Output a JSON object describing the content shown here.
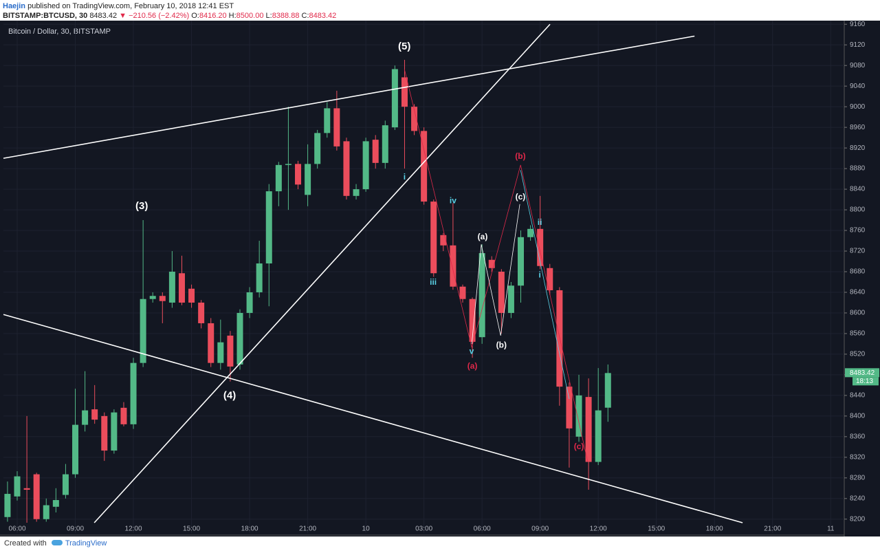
{
  "header": {
    "author": "Haejin",
    "published": "published on TradingView.com, February 10, 2018 12:41 EST",
    "symbol": "BITSTAMP:BTCUSD, 30",
    "last": "8483.42",
    "change": "▼ −210.56 (−2.42%)",
    "o_label": "O:",
    "o": "8416.20",
    "h_label": "H:",
    "h": "8500.00",
    "l_label": "L:",
    "l": "8388.88",
    "c_label": "C:",
    "c": "8483.42"
  },
  "footer": {
    "created": "Created with",
    "brand": "TradingView"
  },
  "chart_data": {
    "type": "candlestick",
    "title": "Bitcoin / Dollar, 30, BITSTAMP",
    "up_color": "#53b987",
    "down_color": "#eb4d5c",
    "x": [
      5.5,
      6,
      6.5,
      7,
      7.5,
      8,
      8.5,
      9,
      9.5,
      10,
      10.5,
      11,
      11.5,
      12,
      12.5,
      13,
      13.5,
      14,
      14.5,
      15,
      15.5,
      16,
      16.5,
      17,
      17.5,
      18,
      18.5,
      19,
      19.5,
      20,
      20.5,
      21,
      21.5,
      22,
      22.5,
      23,
      23.5,
      24,
      24.5,
      25,
      25.5,
      26,
      26.5,
      27,
      27.5,
      28,
      28.5,
      29,
      29.5,
      30,
      30.5,
      31,
      31.5,
      32,
      32.5,
      33,
      33.5,
      34,
      34.5,
      35,
      35.5,
      36,
      36.5
    ],
    "open": [
      8204,
      8244,
      8260,
      8287,
      8200,
      8224,
      8247,
      8287,
      8383,
      8413,
      8400,
      8333,
      8416,
      8384,
      8503,
      8627,
      8633,
      8620,
      8677,
      8647,
      8620,
      8580,
      8503,
      8556,
      8500,
      8600,
      8640,
      8696,
      8836,
      8887,
      8889,
      8829,
      8889,
      8949,
      8997,
      8933,
      8827,
      8840,
      8936,
      8891,
      8960,
      9057,
      9000,
      8953,
      8816,
      8751,
      8731,
      8651,
      8627,
      8553,
      8703,
      8680,
      8600,
      8653,
      8747,
      8763,
      8687,
      8644,
      8457,
      8360,
      8437,
      8311,
      8416.2
    ],
    "high": [
      8273,
      8293,
      8400,
      8290,
      8240,
      8260,
      8307,
      8453,
      8487,
      8460,
      8407,
      8413,
      8427,
      8513,
      8780,
      8640,
      8640,
      8720,
      8711,
      8655,
      8625,
      8590,
      8587,
      8565,
      8607,
      8650,
      8740,
      8850,
      8893,
      9000,
      8895,
      8927,
      8955,
      9009,
      9031,
      8940,
      8850,
      8940,
      8945,
      8973,
      9080,
      9091,
      9005,
      8960,
      8820,
      8755,
      8813,
      8655,
      8630,
      8733,
      8710,
      8685,
      8660,
      8760,
      8770,
      8827,
      8695,
      8650,
      8465,
      8480,
      8473,
      8493,
      8500
    ],
    "low": [
      8195,
      8236,
      8193,
      8195,
      8195,
      8213,
      8240,
      8280,
      8370,
      8385,
      8313,
      8327,
      8380,
      8375,
      8495,
      8620,
      8580,
      8610,
      8615,
      8610,
      8570,
      8495,
      8490,
      8467,
      8490,
      8590,
      8630,
      8613,
      8807,
      8800,
      8840,
      8807,
      8880,
      8940,
      8915,
      8820,
      8820,
      8835,
      8880,
      8880,
      8955,
      8880,
      8945,
      8810,
      8670,
      8720,
      8645,
      8620,
      8513,
      8540,
      8680,
      8560,
      8590,
      8620,
      8740,
      8685,
      8635,
      8420,
      8300,
      8350,
      8257,
      8305,
      8388.88
    ],
    "close": [
      8249,
      8283,
      8257,
      8200,
      8227,
      8237,
      8287,
      8383,
      8411,
      8393,
      8333,
      8407,
      8384,
      8503,
      8627,
      8633,
      8623,
      8680,
      8620,
      8620,
      8580,
      8503,
      8543,
      8496,
      8600,
      8640,
      8696,
      8836,
      8887,
      8889,
      8849,
      8889,
      8949,
      8997,
      8923,
      8827,
      8840,
      8933,
      8891,
      8964,
      9073,
      9000,
      8953,
      8816,
      8677,
      8731,
      8651,
      8627,
      8544,
      8716,
      8687,
      8600,
      8653,
      8747,
      8763,
      8691,
      8644,
      8457,
      8376,
      8440,
      8311,
      8411,
      8483.42
    ],
    "xlim": [
      5.29,
      48.7
    ],
    "xticks": [
      {
        "value": 6,
        "label": "06:00"
      },
      {
        "value": 9,
        "label": "09:00"
      },
      {
        "value": 12,
        "label": "12:00"
      },
      {
        "value": 15,
        "label": "15:00"
      },
      {
        "value": 18,
        "label": "18:00"
      },
      {
        "value": 21,
        "label": "21:00"
      },
      {
        "value": 24,
        "label": "10"
      },
      {
        "value": 27,
        "label": "03:00"
      },
      {
        "value": 30,
        "label": "06:00"
      },
      {
        "value": 33,
        "label": "09:00"
      },
      {
        "value": 36,
        "label": "12:00"
      },
      {
        "value": 39,
        "label": "15:00"
      },
      {
        "value": 42,
        "label": "18:00"
      },
      {
        "value": 45,
        "label": "21:00"
      },
      {
        "value": 48,
        "label": "11"
      }
    ],
    "ylim": [
      8173,
      9167
    ],
    "yticks": [
      8200,
      8240,
      8280,
      8320,
      8360,
      8400,
      8440,
      8480,
      8520,
      8560,
      8600,
      8640,
      8680,
      8720,
      8760,
      8800,
      8840,
      8880,
      8920,
      8960,
      9000,
      9040,
      9080,
      9120,
      9160
    ],
    "grid": true,
    "last_price_label": "8483.42",
    "countdown": "18:13",
    "trendlines": [
      {
        "color": "#ffffff",
        "points": [
          [
            5.29,
            8900
          ],
          [
            40.97,
            9137
          ]
        ]
      },
      {
        "color": "#ffffff",
        "points": [
          [
            9.98,
            8193
          ],
          [
            33.51,
            9160
          ]
        ]
      },
      {
        "color": "#ffffff",
        "points": [
          [
            5.29,
            8597
          ],
          [
            43.45,
            8193
          ]
        ]
      },
      {
        "color": "#e0294a",
        "points": [
          [
            25.99,
            9073
          ],
          [
            29.47,
            8533
          ],
          [
            31.99,
            8887
          ],
          [
            35.46,
            8311
          ]
        ]
      },
      {
        "color": "#ffffff",
        "points": [
          [
            29.47,
            8540
          ],
          [
            29.96,
            8733
          ],
          [
            30.96,
            8556
          ],
          [
            31.95,
            8811
          ]
        ]
      },
      {
        "color": "#5ad1e6",
        "points": [
          [
            31.99,
            8877
          ],
          [
            34.5,
            8433
          ]
        ]
      }
    ],
    "annotations": [
      {
        "text": "(5)",
        "x": 25.99,
        "y": 9116,
        "color": "#ffffff"
      },
      {
        "text": "(3)",
        "x": 12.43,
        "y": 8807,
        "color": "#ffffff"
      },
      {
        "text": "(4)",
        "x": 16.97,
        "y": 8439,
        "color": "#ffffff"
      },
      {
        "text": "i",
        "x": 26.0,
        "y": 8863,
        "color": "#5ad1e6"
      },
      {
        "text": "iv",
        "x": 28.5,
        "y": 8817,
        "color": "#5ad1e6"
      },
      {
        "text": "iii",
        "x": 27.48,
        "y": 8659,
        "color": "#5ad1e6"
      },
      {
        "text": "v",
        "x": 29.46,
        "y": 8525,
        "color": "#5ad1e6"
      },
      {
        "text": "(a)",
        "x": 29.5,
        "y": 8496,
        "color": "#e0294a"
      },
      {
        "text": "(a)",
        "x": 30.03,
        "y": 8747,
        "color": "#ffffff"
      },
      {
        "text": "(b)",
        "x": 31.0,
        "y": 8537,
        "color": "#ffffff"
      },
      {
        "text": "(c)",
        "x": 31.98,
        "y": 8824,
        "color": "#ffffff"
      },
      {
        "text": "(b)",
        "x": 31.98,
        "y": 8903,
        "color": "#e0294a"
      },
      {
        "text": "ii",
        "x": 32.98,
        "y": 8775,
        "color": "#5ad1e6"
      },
      {
        "text": "i",
        "x": 32.98,
        "y": 8673,
        "color": "#5ad1e6"
      },
      {
        "text": "(c)",
        "x": 35.0,
        "y": 8340,
        "color": "#e0294a"
      }
    ]
  }
}
